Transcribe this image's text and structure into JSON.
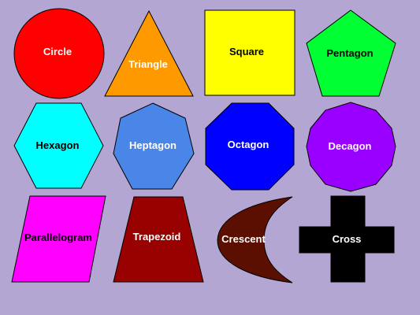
{
  "shapes": [
    {
      "id": "circle",
      "label": "Circle",
      "fill": "#ff0000",
      "text_color": "#ffffff"
    },
    {
      "id": "triangle",
      "label": "Triangle",
      "fill": "#ff9900",
      "text_color": "#ffffff"
    },
    {
      "id": "square",
      "label": "Square",
      "fill": "#ffff00",
      "text_color": "#000000"
    },
    {
      "id": "pentagon",
      "label": "Pentagon",
      "fill": "#00ff33",
      "text_color": "#000000"
    },
    {
      "id": "hexagon",
      "label": "Hexagon",
      "fill": "#00ffff",
      "text_color": "#000000"
    },
    {
      "id": "heptagon",
      "label": "Heptagon",
      "fill": "#4a86e8",
      "text_color": "#ffffff"
    },
    {
      "id": "octagon",
      "label": "Octagon",
      "fill": "#0000ff",
      "text_color": "#ffffff"
    },
    {
      "id": "decagon",
      "label": "Decagon",
      "fill": "#9900ff",
      "text_color": "#ffffff"
    },
    {
      "id": "parallelogram",
      "label": "Parallelogram",
      "fill": "#ff00ff",
      "text_color": "#000000"
    },
    {
      "id": "trapezoid",
      "label": "Trapezoid",
      "fill": "#990000",
      "text_color": "#ffffff"
    },
    {
      "id": "crescent",
      "label": "Crescent",
      "fill": "#5b0f00",
      "text_color": "#ffffff"
    },
    {
      "id": "cross",
      "label": "Cross",
      "fill": "#000000",
      "text_color": "#ffffff"
    }
  ]
}
